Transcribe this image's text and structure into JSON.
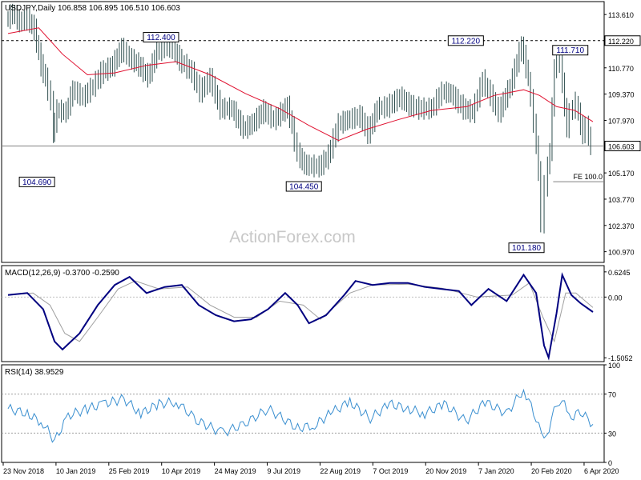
{
  "header": {
    "title": "USDJPY,Daily",
    "ohlc": "106.858 106.895 106.510 106.603"
  },
  "watermark": "ActionForex.com",
  "colors": {
    "price": "#2f4f4f",
    "ma": "#e0102f",
    "macd": "#000080",
    "signal": "#a0a0a0",
    "rsi": "#3a8fd0",
    "hline": "#808080"
  },
  "chart_data": [
    {
      "type": "line",
      "panel": "price",
      "title": "USDJPY,Daily",
      "ylim": [
        100.4,
        114.3
      ],
      "yticks": [
        "113.610",
        "112.220",
        "110.770",
        "109.370",
        "107.970",
        "106.603",
        "105.170",
        "103.770",
        "102.370",
        "100.970"
      ],
      "y_tick_values": [
        113.61,
        112.22,
        110.77,
        109.37,
        107.97,
        106.603,
        105.17,
        103.77,
        102.37,
        100.97
      ],
      "highlighted_ticks": [
        "112.220",
        "106.603"
      ],
      "x_labels": [
        "23 Nov 2018",
        "10 Jan 2019",
        "25 Feb 2019",
        "10 Apr 2019",
        "24 May 2019",
        "9 Jul 2019",
        "22 Aug 2019",
        "7 Oct 2019",
        "20 Nov 2019",
        "7 Jan 2020",
        "20 Feb 2020",
        "6 Apr 2020"
      ],
      "x_range": [
        "2018-11-23",
        "2020-04-21"
      ],
      "series": [
        {
          "kind": "price",
          "points": [
            [
              "2018-11-23",
              113.3
            ],
            [
              "2018-11-29",
              113.7
            ],
            [
              "2018-12-05",
              113.2
            ],
            [
              "2018-12-12",
              113.4
            ],
            [
              "2018-12-18",
              112.8
            ],
            [
              "2018-12-24",
              110.9
            ],
            [
              "2018-12-28",
              110.2
            ],
            [
              "2019-01-02",
              109.0
            ],
            [
              "2019-01-03",
              107.3
            ],
            [
              "2019-01-07",
              108.5
            ],
            [
              "2019-01-15",
              108.4
            ],
            [
              "2019-01-21",
              109.6
            ],
            [
              "2019-01-30",
              109.2
            ],
            [
              "2019-02-08",
              109.8
            ],
            [
              "2019-02-15",
              110.5
            ],
            [
              "2019-02-25",
              110.9
            ],
            [
              "2019-03-05",
              111.8
            ],
            [
              "2019-03-12",
              111.3
            ],
            [
              "2019-03-20",
              110.9
            ],
            [
              "2019-03-28",
              110.3
            ],
            [
              "2019-04-05",
              111.6
            ],
            [
              "2019-04-12",
              111.9
            ],
            [
              "2019-04-19",
              111.8
            ],
            [
              "2019-04-25",
              111.2
            ],
            [
              "2019-05-06",
              110.5
            ],
            [
              "2019-05-13",
              109.5
            ],
            [
              "2019-05-22",
              110.2
            ],
            [
              "2019-05-31",
              108.6
            ],
            [
              "2019-06-10",
              108.6
            ],
            [
              "2019-06-20",
              107.5
            ],
            [
              "2019-06-28",
              107.8
            ],
            [
              "2019-07-08",
              108.5
            ],
            [
              "2019-07-17",
              108.0
            ],
            [
              "2019-07-29",
              108.7
            ],
            [
              "2019-08-02",
              107.6
            ],
            [
              "2019-08-07",
              106.2
            ],
            [
              "2019-08-13",
              105.6
            ],
            [
              "2019-08-26",
              105.5
            ],
            [
              "2019-09-03",
              106.1
            ],
            [
              "2019-09-12",
              107.8
            ],
            [
              "2019-09-20",
              108.0
            ],
            [
              "2019-10-01",
              108.2
            ],
            [
              "2019-10-08",
              107.3
            ],
            [
              "2019-10-16",
              108.6
            ],
            [
              "2019-10-25",
              108.7
            ],
            [
              "2019-11-05",
              109.2
            ],
            [
              "2019-11-13",
              108.8
            ],
            [
              "2019-11-22",
              108.6
            ],
            [
              "2019-12-03",
              108.6
            ],
            [
              "2019-12-12",
              109.5
            ],
            [
              "2019-12-20",
              109.4
            ],
            [
              "2019-12-31",
              108.6
            ],
            [
              "2020-01-08",
              108.4
            ],
            [
              "2020-01-17",
              110.1
            ],
            [
              "2020-01-24",
              109.3
            ],
            [
              "2020-01-31",
              108.4
            ],
            [
              "2020-02-10",
              109.8
            ],
            [
              "2020-02-20",
              112.0
            ],
            [
              "2020-02-26",
              110.2
            ],
            [
              "2020-03-02",
              107.9
            ],
            [
              "2020-03-06",
              105.3
            ],
            [
              "2020-03-09",
              102.5
            ],
            [
              "2020-03-12",
              104.5
            ],
            [
              "2020-03-16",
              106.4
            ],
            [
              "2020-03-20",
              110.8
            ],
            [
              "2020-03-25",
              111.2
            ],
            [
              "2020-03-31",
              107.5
            ],
            [
              "2020-04-03",
              108.4
            ],
            [
              "2020-04-08",
              108.9
            ],
            [
              "2020-04-14",
              107.2
            ],
            [
              "2020-04-17",
              107.7
            ],
            [
              "2020-04-21",
              106.6
            ]
          ]
        },
        {
          "kind": "moving_average",
          "points": [
            [
              "2018-11-23",
              112.6
            ],
            [
              "2018-12-20",
              112.9
            ],
            [
              "2019-01-10",
              111.5
            ],
            [
              "2019-02-01",
              110.4
            ],
            [
              "2019-02-25",
              110.5
            ],
            [
              "2019-03-25",
              110.9
            ],
            [
              "2019-04-20",
              111.1
            ],
            [
              "2019-05-20",
              110.4
            ],
            [
              "2019-06-20",
              109.4
            ],
            [
              "2019-07-20",
              108.6
            ],
            [
              "2019-08-15",
              107.7
            ],
            [
              "2019-09-10",
              106.9
            ],
            [
              "2019-10-05",
              107.5
            ],
            [
              "2019-11-01",
              108.0
            ],
            [
              "2019-12-01",
              108.5
            ],
            [
              "2020-01-01",
              108.7
            ],
            [
              "2020-01-25",
              109.3
            ],
            [
              "2020-02-20",
              109.6
            ],
            [
              "2020-03-05",
              109.3
            ],
            [
              "2020-03-20",
              108.7
            ],
            [
              "2020-04-05",
              108.5
            ],
            [
              "2020-04-21",
              107.9
            ]
          ]
        }
      ],
      "annotations": [
        {
          "label": "104.690",
          "date": "2019-01-03",
          "value": 104.69
        },
        {
          "label": "112.400",
          "date": "2019-04-18",
          "value": 112.4
        },
        {
          "label": "104.450",
          "date": "2019-08-26",
          "value": 104.45
        },
        {
          "label": "112.220",
          "date": "2020-01-17",
          "value": 112.22
        },
        {
          "label": "111.710",
          "date": "2020-03-25",
          "value": 111.71
        },
        {
          "label": "101.180",
          "date": "2020-03-09",
          "value": 101.18
        }
      ],
      "levels": [
        {
          "label": "",
          "value": 112.22,
          "style": "dashed"
        },
        {
          "label": "",
          "value": 106.603,
          "style": "solid"
        },
        {
          "label": "FE 100.0",
          "value": 104.7,
          "style": "solid",
          "from_date": "2020-03-17"
        }
      ]
    },
    {
      "type": "line",
      "panel": "macd",
      "title": "MACD(12,26,9) -0.3700 -0.2590",
      "ylim": [
        -1.6,
        0.78
      ],
      "yticks": [
        "0.6245",
        "0.00",
        "-1.5052"
      ],
      "y_tick_values": [
        0.6245,
        0.0,
        -1.5052
      ],
      "series": [
        {
          "kind": "macd",
          "points": [
            [
              "2018-11-23",
              0.05
            ],
            [
              "2018-12-10",
              0.1
            ],
            [
              "2018-12-24",
              -0.3
            ],
            [
              "2019-01-03",
              -1.1
            ],
            [
              "2019-01-10",
              -1.3
            ],
            [
              "2019-01-25",
              -0.9
            ],
            [
              "2019-02-10",
              -0.2
            ],
            [
              "2019-02-25",
              0.3
            ],
            [
              "2019-03-10",
              0.5
            ],
            [
              "2019-03-25",
              0.1
            ],
            [
              "2019-04-10",
              0.25
            ],
            [
              "2019-04-25",
              0.3
            ],
            [
              "2019-05-10",
              -0.2
            ],
            [
              "2019-05-25",
              -0.45
            ],
            [
              "2019-06-10",
              -0.6
            ],
            [
              "2019-06-25",
              -0.55
            ],
            [
              "2019-07-10",
              -0.3
            ],
            [
              "2019-07-25",
              0.1
            ],
            [
              "2019-08-05",
              -0.2
            ],
            [
              "2019-08-15",
              -0.65
            ],
            [
              "2019-08-30",
              -0.45
            ],
            [
              "2019-09-15",
              0.05
            ],
            [
              "2019-09-25",
              0.4
            ],
            [
              "2019-10-10",
              0.3
            ],
            [
              "2019-10-25",
              0.35
            ],
            [
              "2019-11-10",
              0.35
            ],
            [
              "2019-11-25",
              0.25
            ],
            [
              "2019-12-10",
              0.2
            ],
            [
              "2019-12-25",
              0.15
            ],
            [
              "2020-01-05",
              -0.2
            ],
            [
              "2020-01-20",
              0.2
            ],
            [
              "2020-02-05",
              -0.1
            ],
            [
              "2020-02-20",
              0.55
            ],
            [
              "2020-03-02",
              0.1
            ],
            [
              "2020-03-09",
              -1.2
            ],
            [
              "2020-03-13",
              -1.5
            ],
            [
              "2020-03-20",
              -0.4
            ],
            [
              "2020-03-25",
              0.55
            ],
            [
              "2020-04-02",
              0.05
            ],
            [
              "2020-04-10",
              -0.15
            ],
            [
              "2020-04-21",
              -0.37
            ]
          ]
        },
        {
          "kind": "signal",
          "points": [
            [
              "2018-11-23",
              0.05
            ],
            [
              "2018-12-15",
              0.1
            ],
            [
              "2018-12-30",
              -0.2
            ],
            [
              "2019-01-12",
              -0.9
            ],
            [
              "2019-01-25",
              -1.1
            ],
            [
              "2019-02-10",
              -0.5
            ],
            [
              "2019-02-28",
              0.2
            ],
            [
              "2019-03-15",
              0.4
            ],
            [
              "2019-04-05",
              0.2
            ],
            [
              "2019-04-30",
              0.25
            ],
            [
              "2019-05-20",
              -0.2
            ],
            [
              "2019-06-10",
              -0.5
            ],
            [
              "2019-06-30",
              -0.5
            ],
            [
              "2019-07-20",
              -0.1
            ],
            [
              "2019-08-10",
              -0.2
            ],
            [
              "2019-08-25",
              -0.55
            ],
            [
              "2019-09-20",
              0.1
            ],
            [
              "2019-10-10",
              0.3
            ],
            [
              "2019-11-10",
              0.32
            ],
            [
              "2019-12-10",
              0.22
            ],
            [
              "2020-01-10",
              0.0
            ],
            [
              "2020-02-10",
              0.05
            ],
            [
              "2020-02-25",
              0.35
            ],
            [
              "2020-03-08",
              -0.5
            ],
            [
              "2020-03-18",
              -1.1
            ],
            [
              "2020-03-28",
              0.1
            ],
            [
              "2020-04-06",
              0.1
            ],
            [
              "2020-04-21",
              -0.26
            ]
          ]
        }
      ]
    },
    {
      "type": "line",
      "panel": "rsi",
      "title": "RSI(14) 38.9529",
      "ylim": [
        0,
        100
      ],
      "yticks": [
        "100",
        "70",
        "30",
        "0"
      ],
      "y_tick_values": [
        100,
        70,
        30,
        0
      ],
      "levels": [
        70,
        30
      ],
      "series": [
        {
          "kind": "rsi",
          "points": [
            [
              "2018-11-23",
              55
            ],
            [
              "2018-12-10",
              50
            ],
            [
              "2018-12-24",
              40
            ],
            [
              "2019-01-03",
              22
            ],
            [
              "2019-01-15",
              48
            ],
            [
              "2019-02-01",
              55
            ],
            [
              "2019-02-15",
              60
            ],
            [
              "2019-03-05",
              65
            ],
            [
              "2019-03-20",
              50
            ],
            [
              "2019-04-05",
              60
            ],
            [
              "2019-04-20",
              62
            ],
            [
              "2019-05-10",
              42
            ],
            [
              "2019-05-31",
              30
            ],
            [
              "2019-06-20",
              40
            ],
            [
              "2019-07-10",
              55
            ],
            [
              "2019-08-05",
              35
            ],
            [
              "2019-08-20",
              38
            ],
            [
              "2019-09-05",
              52
            ],
            [
              "2019-09-20",
              62
            ],
            [
              "2019-10-08",
              45
            ],
            [
              "2019-10-25",
              60
            ],
            [
              "2019-11-10",
              55
            ],
            [
              "2019-11-25",
              50
            ],
            [
              "2019-12-12",
              60
            ],
            [
              "2019-12-31",
              42
            ],
            [
              "2020-01-17",
              62
            ],
            [
              "2020-02-05",
              50
            ],
            [
              "2020-02-20",
              75
            ],
            [
              "2020-03-02",
              45
            ],
            [
              "2020-03-09",
              20
            ],
            [
              "2020-03-20",
              60
            ],
            [
              "2020-03-25",
              65
            ],
            [
              "2020-03-31",
              45
            ],
            [
              "2020-04-10",
              52
            ],
            [
              "2020-04-21",
              39
            ]
          ]
        }
      ]
    }
  ]
}
